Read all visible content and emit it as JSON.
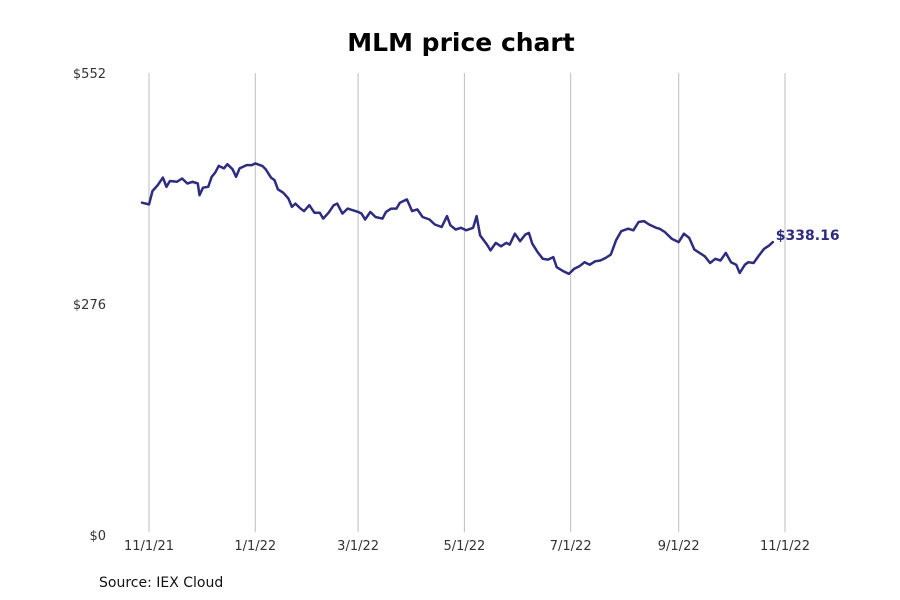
{
  "chart_data": {
    "type": "line",
    "title": "MLM price chart",
    "source": "Source: IEX Cloud",
    "xlabel": "",
    "ylabel": "",
    "grid": "vertical",
    "legend": "none",
    "line_color": "#2e2c7f",
    "x_range": [
      "2021-10-28",
      "2022-11-01"
    ],
    "ylim": [
      0,
      552
    ],
    "y_ticks": [
      {
        "value": 0,
        "label": "$0"
      },
      {
        "value": 276,
        "label": "$276"
      },
      {
        "value": 552,
        "label": "$552"
      }
    ],
    "x_ticks": [
      {
        "date": "2021-11-01",
        "label": "11/1/21"
      },
      {
        "date": "2022-01-01",
        "label": "1/1/22"
      },
      {
        "date": "2022-03-01",
        "label": "3/1/22"
      },
      {
        "date": "2022-05-01",
        "label": "5/1/22"
      },
      {
        "date": "2022-07-01",
        "label": "7/1/22"
      },
      {
        "date": "2022-09-01",
        "label": "9/1/22"
      },
      {
        "date": "2022-11-01",
        "label": "11/1/22"
      }
    ],
    "end_label": "$338.16",
    "series": [
      {
        "points": [
          [
            "2021-10-28",
            397
          ],
          [
            "2021-11-01",
            395
          ],
          [
            "2021-11-03",
            411
          ],
          [
            "2021-11-06",
            418
          ],
          [
            "2021-11-09",
            427
          ],
          [
            "2021-11-11",
            416
          ],
          [
            "2021-11-13",
            423
          ],
          [
            "2021-11-17",
            422
          ],
          [
            "2021-11-20",
            426
          ],
          [
            "2021-11-23",
            420
          ],
          [
            "2021-11-26",
            422
          ],
          [
            "2021-11-29",
            420
          ],
          [
            "2021-11-30",
            406
          ],
          [
            "2021-12-02",
            415
          ],
          [
            "2021-12-05",
            416
          ],
          [
            "2021-12-07",
            428
          ],
          [
            "2021-12-09",
            433
          ],
          [
            "2021-12-11",
            441
          ],
          [
            "2021-12-14",
            438
          ],
          [
            "2021-12-16",
            443
          ],
          [
            "2021-12-19",
            437
          ],
          [
            "2021-12-21",
            428
          ],
          [
            "2021-12-23",
            438
          ],
          [
            "2021-12-27",
            442
          ],
          [
            "2021-12-30",
            442
          ],
          [
            "2022-01-01",
            444
          ],
          [
            "2022-01-05",
            441
          ],
          [
            "2022-01-07",
            437
          ],
          [
            "2022-01-10",
            427
          ],
          [
            "2022-01-12",
            424
          ],
          [
            "2022-01-14",
            413
          ],
          [
            "2022-01-17",
            409
          ],
          [
            "2022-01-20",
            402
          ],
          [
            "2022-01-22",
            392
          ],
          [
            "2022-01-24",
            396
          ],
          [
            "2022-01-27",
            390
          ],
          [
            "2022-01-29",
            387
          ],
          [
            "2022-02-01",
            394
          ],
          [
            "2022-02-04",
            385
          ],
          [
            "2022-02-07",
            385
          ],
          [
            "2022-02-09",
            378
          ],
          [
            "2022-02-12",
            385
          ],
          [
            "2022-02-15",
            394
          ],
          [
            "2022-02-17",
            396
          ],
          [
            "2022-02-20",
            384
          ],
          [
            "2022-02-23",
            390
          ],
          [
            "2022-03-01",
            386
          ],
          [
            "2022-03-03",
            384
          ],
          [
            "2022-03-05",
            377
          ],
          [
            "2022-03-08",
            386
          ],
          [
            "2022-03-11",
            380
          ],
          [
            "2022-03-15",
            378
          ],
          [
            "2022-03-17",
            386
          ],
          [
            "2022-03-20",
            390
          ],
          [
            "2022-03-23",
            390
          ],
          [
            "2022-03-25",
            397
          ],
          [
            "2022-03-29",
            401
          ],
          [
            "2022-04-01",
            387
          ],
          [
            "2022-04-04",
            389
          ],
          [
            "2022-04-07",
            380
          ],
          [
            "2022-04-11",
            377
          ],
          [
            "2022-04-14",
            371
          ],
          [
            "2022-04-18",
            368
          ],
          [
            "2022-04-21",
            381
          ],
          [
            "2022-04-23",
            370
          ],
          [
            "2022-04-26",
            365
          ],
          [
            "2022-04-29",
            367
          ],
          [
            "2022-05-02",
            364
          ],
          [
            "2022-05-06",
            367
          ],
          [
            "2022-05-08",
            381
          ],
          [
            "2022-05-10",
            358
          ],
          [
            "2022-05-14",
            347
          ],
          [
            "2022-05-16",
            340
          ],
          [
            "2022-05-19",
            349
          ],
          [
            "2022-05-22",
            345
          ],
          [
            "2022-05-25",
            349
          ],
          [
            "2022-05-27",
            347
          ],
          [
            "2022-05-30",
            360
          ],
          [
            "2022-06-02",
            351
          ],
          [
            "2022-06-05",
            359
          ],
          [
            "2022-06-07",
            361
          ],
          [
            "2022-06-09",
            348
          ],
          [
            "2022-06-12",
            338
          ],
          [
            "2022-06-15",
            330
          ],
          [
            "2022-06-18",
            329
          ],
          [
            "2022-06-21",
            332
          ],
          [
            "2022-06-23",
            320
          ],
          [
            "2022-06-27",
            315
          ],
          [
            "2022-06-30",
            312
          ],
          [
            "2022-07-03",
            318
          ],
          [
            "2022-07-06",
            321
          ],
          [
            "2022-07-09",
            326
          ],
          [
            "2022-07-12",
            323
          ],
          [
            "2022-07-15",
            327
          ],
          [
            "2022-07-18",
            328
          ],
          [
            "2022-07-21",
            331
          ],
          [
            "2022-07-24",
            335
          ],
          [
            "2022-07-27",
            352
          ],
          [
            "2022-07-30",
            363
          ],
          [
            "2022-08-03",
            366
          ],
          [
            "2022-08-06",
            364
          ],
          [
            "2022-08-09",
            374
          ],
          [
            "2022-08-12",
            375
          ],
          [
            "2022-08-15",
            371
          ],
          [
            "2022-08-19",
            367
          ],
          [
            "2022-08-21",
            366
          ],
          [
            "2022-08-24",
            362
          ],
          [
            "2022-08-28",
            354
          ],
          [
            "2022-09-01",
            350
          ],
          [
            "2022-09-04",
            360
          ],
          [
            "2022-09-07",
            355
          ],
          [
            "2022-09-10",
            341
          ],
          [
            "2022-09-13",
            337
          ],
          [
            "2022-09-16",
            333
          ],
          [
            "2022-09-19",
            325
          ],
          [
            "2022-09-22",
            330
          ],
          [
            "2022-09-25",
            328
          ],
          [
            "2022-09-28",
            337
          ],
          [
            "2022-10-01",
            326
          ],
          [
            "2022-10-04",
            323
          ],
          [
            "2022-10-06",
            313
          ],
          [
            "2022-10-09",
            323
          ],
          [
            "2022-10-11",
            326
          ],
          [
            "2022-10-14",
            325
          ],
          [
            "2022-10-17",
            334
          ],
          [
            "2022-10-20",
            342
          ],
          [
            "2022-10-23",
            346
          ],
          [
            "2022-10-25",
            350
          ]
        ]
      }
    ]
  }
}
